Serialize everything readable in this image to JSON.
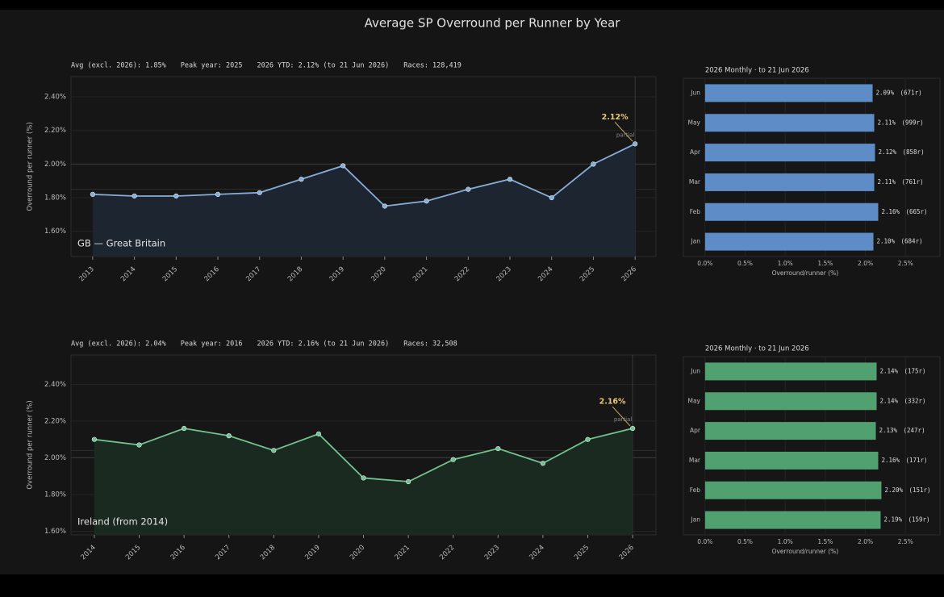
{
  "title": "Average SP Overround per Runner by Year",
  "chart_data": [
    {
      "type": "line",
      "stats": [
        "Avg (excl. 2026): 1.85%",
        "Peak year: 2025",
        "2026 YTD: 2.12% (to 21 Jun 2026)",
        "Races: 128,419"
      ],
      "label": "GB — Great Britain",
      "ylabel": "Overround per runner (%)",
      "x": [
        2013,
        2014,
        2015,
        2016,
        2017,
        2018,
        2019,
        2020,
        2021,
        2022,
        2023,
        2024,
        2025,
        2026
      ],
      "values": [
        1.82,
        1.81,
        1.81,
        1.82,
        1.83,
        1.91,
        1.99,
        1.75,
        1.78,
        1.85,
        1.91,
        1.8,
        2.0,
        2.12
      ],
      "color": "#86acd8",
      "fill": "#1d2530",
      "xlim": [
        2012.48,
        2026.5
      ],
      "xticks": [
        2013,
        2014,
        2015,
        2016,
        2017,
        2018,
        2019,
        2020,
        2021,
        2022,
        2023,
        2024,
        2025,
        2026
      ],
      "ylim": [
        1.45,
        2.52
      ],
      "yticks": [
        {
          "value": 1.6,
          "label": "1.60%"
        },
        {
          "value": 1.8,
          "label": "1.80%"
        },
        {
          "value": 2.0,
          "label": "2.00%"
        },
        {
          "value": 2.2,
          "label": "2.20%"
        },
        {
          "value": 2.4,
          "label": "2.40%"
        }
      ],
      "grid": true,
      "hlines": [
        2.0,
        1.85
      ],
      "annotation": "2.12%",
      "annotation_note": "partial"
    },
    {
      "type": "barh",
      "subtitle": "2026 Monthly · to 21 Jun 2026",
      "xlabel": "Overround/runner (%)",
      "categories": [
        "Jun",
        "May",
        "Apr",
        "Mar",
        "Feb",
        "Jan"
      ],
      "values": [
        2.09,
        2.11,
        2.12,
        2.11,
        2.16,
        2.1
      ],
      "value_labels": [
        "2.09%",
        "2.11%",
        "2.12%",
        "2.11%",
        "2.16%",
        "2.10%"
      ],
      "count_labels": [
        "(671r)",
        "(999r)",
        "(858r)",
        "(761r)",
        "(665r)",
        "(684r)"
      ],
      "color": "#5e8cc6",
      "xlim": [
        -0.27,
        2.93
      ],
      "xticks": [
        {
          "value": 0,
          "label": "0.0%"
        },
        {
          "value": 0.5,
          "label": "0.5%"
        },
        {
          "value": 1,
          "label": "1.0%"
        },
        {
          "value": 1.5,
          "label": "1.5%"
        },
        {
          "value": 2,
          "label": "2.0%"
        },
        {
          "value": 2.5,
          "label": "2.5%"
        }
      ],
      "grid": true
    },
    {
      "type": "line",
      "stats": [
        "Avg (excl. 2026): 2.04%",
        "Peak year: 2016",
        "2026 YTD: 2.16% (to 21 Jun 2026)",
        "Races: 32,508"
      ],
      "label": "Ireland (from 2014)",
      "ylabel": "Overround per runner (%)",
      "x": [
        2014,
        2015,
        2016,
        2017,
        2018,
        2019,
        2020,
        2021,
        2022,
        2023,
        2024,
        2025,
        2026
      ],
      "values": [
        2.1,
        2.07,
        2.16,
        2.12,
        2.04,
        2.13,
        1.89,
        1.87,
        1.99,
        2.05,
        1.97,
        2.1,
        2.16
      ],
      "color": "#72c290",
      "fill": "#1b2a21",
      "xlim": [
        2013.48,
        2026.52
      ],
      "xticks": [
        2014,
        2015,
        2016,
        2017,
        2018,
        2019,
        2020,
        2021,
        2022,
        2023,
        2024,
        2025,
        2026
      ],
      "ylim": [
        1.58,
        2.56
      ],
      "yticks": [
        {
          "value": 1.6,
          "label": "1.60%"
        },
        {
          "value": 1.8,
          "label": "1.80%"
        },
        {
          "value": 2.0,
          "label": "2.00%"
        },
        {
          "value": 2.2,
          "label": "2.20%"
        },
        {
          "value": 2.4,
          "label": "2.40%"
        }
      ],
      "grid": true,
      "hlines": [
        2.0,
        2.04
      ],
      "annotation": "2.16%",
      "annotation_note": "partial"
    },
    {
      "type": "barh",
      "subtitle": "2026 Monthly · to 21 Jun 2026",
      "xlabel": "Overround/runner (%)",
      "categories": [
        "Jun",
        "May",
        "Apr",
        "Mar",
        "Feb",
        "Jan"
      ],
      "values": [
        2.14,
        2.14,
        2.13,
        2.16,
        2.2,
        2.19
      ],
      "value_labels": [
        "2.14%",
        "2.14%",
        "2.13%",
        "2.16%",
        "2.20%",
        "2.19%"
      ],
      "count_labels": [
        "(175r)",
        "(332r)",
        "(247r)",
        "(171r)",
        "(151r)",
        "(159r)"
      ],
      "color": "#51a070",
      "xlim": [
        -0.27,
        2.93
      ],
      "xticks": [
        {
          "value": 0,
          "label": "0.0%"
        },
        {
          "value": 0.5,
          "label": "0.5%"
        },
        {
          "value": 1,
          "label": "1.0%"
        },
        {
          "value": 1.5,
          "label": "1.5%"
        },
        {
          "value": 2,
          "label": "2.0%"
        },
        {
          "value": 2.5,
          "label": "2.5%"
        }
      ],
      "grid": true
    }
  ]
}
